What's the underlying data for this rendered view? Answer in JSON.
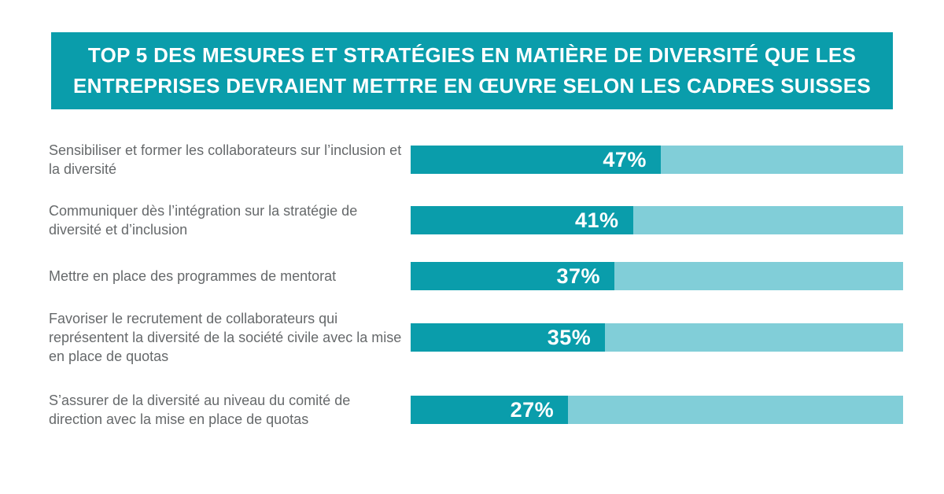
{
  "banner": {
    "line1": "TOP 5 DES MESURES ET STRATÉGIES EN MATIÈRE DE DIVERSITÉ QUE LES",
    "line2": "ENTREPRISES DEVRAIENT METTRE EN ŒUVRE SELON LES CADRES SUISSES"
  },
  "colors": {
    "teal": "#0a9dab",
    "teal_light": "#81ced8",
    "label_gray": "#66696b",
    "banner_text": "#ffffff",
    "value_text": "#ffffff",
    "background": "#ffffff"
  },
  "chart_data": {
    "type": "bar",
    "orientation": "horizontal",
    "title": "TOP 5 DES MESURES ET STRATÉGIES EN MATIÈRE DE DIVERSITÉ QUE LES ENTREPRISES DEVRAIENT METTRE EN ŒUVRE SELON LES CADRES SUISSES",
    "categories": [
      "Sensibiliser et former les collaborateurs sur l’inclusion et la diversité",
      "Communiquer dès l’intégration sur la stratégie de diversité et d’inclusion",
      "Mettre en place des programmes de mentorat",
      "Favoriser le recrutement de collaborateurs qui représentent la diversité de la société civile avec la mise en place de quotas",
      "S’assurer de la diversité au niveau du comité de direction avec la mise en place de quotas"
    ],
    "values": [
      47,
      41,
      37,
      35,
      27
    ],
    "value_labels": [
      "47%",
      "41%",
      "37%",
      "35%",
      "27%"
    ],
    "unit": "%",
    "xlim": [
      0,
      100
    ],
    "grid": false,
    "legend": "none",
    "value_label_position": "inside-end",
    "bar_fill_color": "#0a9dab",
    "bar_track_color": "#81ced8",
    "fill_scale": {
      "offset_pct": 6.6,
      "per_unit_pct": 0.94
    }
  }
}
